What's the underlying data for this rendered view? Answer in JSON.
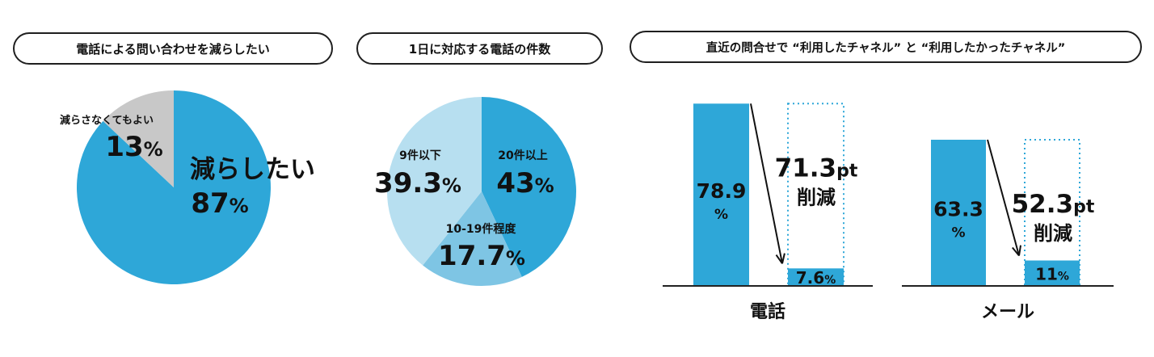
{
  "chart_data": [
    {
      "type": "pie",
      "title": "電話による問い合わせを減らしたい",
      "slices": [
        {
          "label": "減らしたい",
          "value": 87,
          "value_label": "87",
          "unit": "%",
          "color": "#2ea7d8"
        },
        {
          "label": "減らさなくてもよい",
          "value": 13,
          "value_label": "13",
          "unit": "%",
          "color": "#c8c8c8"
        }
      ]
    },
    {
      "type": "pie",
      "title": "1日に対応する電話の件数",
      "slices": [
        {
          "label": "20件以上",
          "value": 43,
          "value_label": "43",
          "unit": "%",
          "color": "#2ea7d8"
        },
        {
          "label": "10-19件程度",
          "value": 17.7,
          "value_label": "17.7",
          "unit": "%",
          "color": "#7ec5e4"
        },
        {
          "label": "9件以下",
          "value": 39.3,
          "value_label": "39.3",
          "unit": "%",
          "color": "#b7dff0"
        }
      ]
    },
    {
      "type": "bar",
      "title": "直近の問合せで “利用したチャネル” と “利用したかったチャネル”",
      "groups": [
        {
          "name": "電話",
          "used": 78.9,
          "used_label": "78.9",
          "wanted": 7.6,
          "wanted_label": "7.6",
          "diff_label": "71.3",
          "diff_unit": "pt",
          "diff_word": "削減"
        },
        {
          "name": "メール",
          "used": 63.3,
          "used_label": "63.3",
          "wanted": 11,
          "wanted_label": "11",
          "diff_label": "52.3",
          "diff_unit": "pt",
          "diff_word": "削減"
        }
      ],
      "unit": "%",
      "ylim": [
        0,
        100
      ]
    }
  ]
}
